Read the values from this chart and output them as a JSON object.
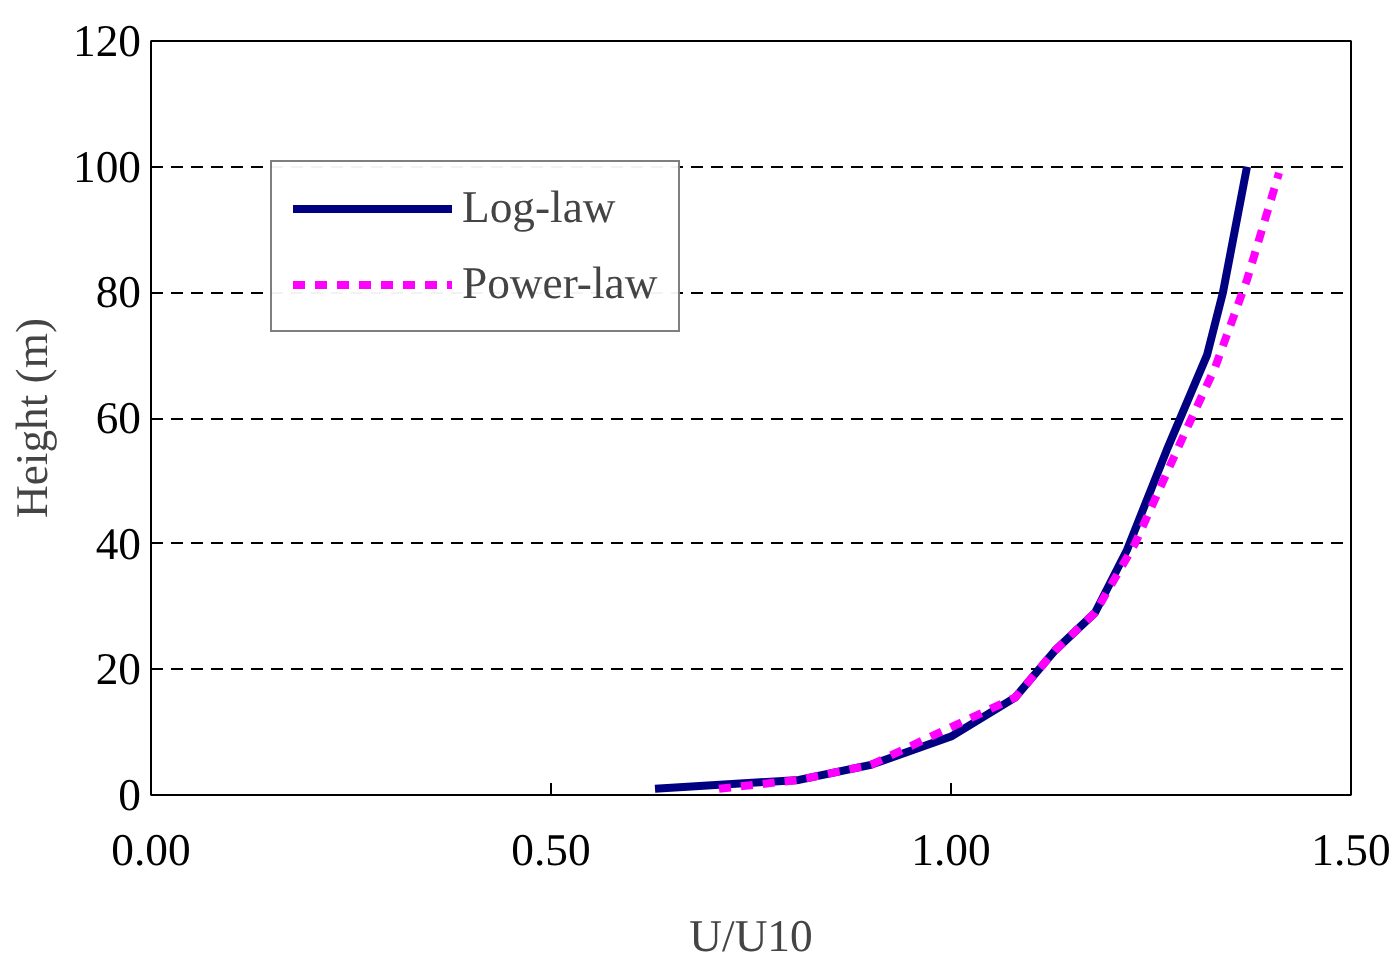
{
  "chart_data": {
    "type": "line",
    "xlabel": "U/U10",
    "ylabel": "Height (m)",
    "xlim": [
      0,
      1.5
    ],
    "xticks": [
      {
        "value": 0,
        "label": "0.00"
      },
      {
        "value": 0.5,
        "label": "0.50"
      },
      {
        "value": 1.0,
        "label": "1.00"
      },
      {
        "value": 1.5,
        "label": "1.50"
      }
    ],
    "ylim": [
      0,
      120
    ],
    "yticks": [
      0,
      20,
      40,
      60,
      80,
      100,
      120
    ],
    "grid": "y",
    "legend": "top left",
    "series": [
      {
        "name": "Log-law",
        "color": "#000080",
        "line_style": "solid",
        "x": [
          0.63,
          0.81,
          0.9,
          1.0,
          1.08,
          1.13,
          1.18,
          1.22,
          1.27,
          1.32,
          1.34,
          1.37
        ],
        "values": [
          1,
          2.4,
          4.8,
          9.3,
          15.5,
          23,
          29,
          39,
          55,
          70,
          80,
          100
        ]
      },
      {
        "name": "Power-law",
        "color": "#ff00ff",
        "line_style": "dashed",
        "x": [
          0.71,
          0.81,
          0.9,
          0.97,
          1.08,
          1.13,
          1.18,
          1.23,
          1.29,
          1.33,
          1.37,
          1.41
        ],
        "values": [
          1,
          2.4,
          4.8,
          9,
          15.5,
          23,
          29,
          40,
          57,
          68,
          82,
          99
        ]
      }
    ]
  }
}
